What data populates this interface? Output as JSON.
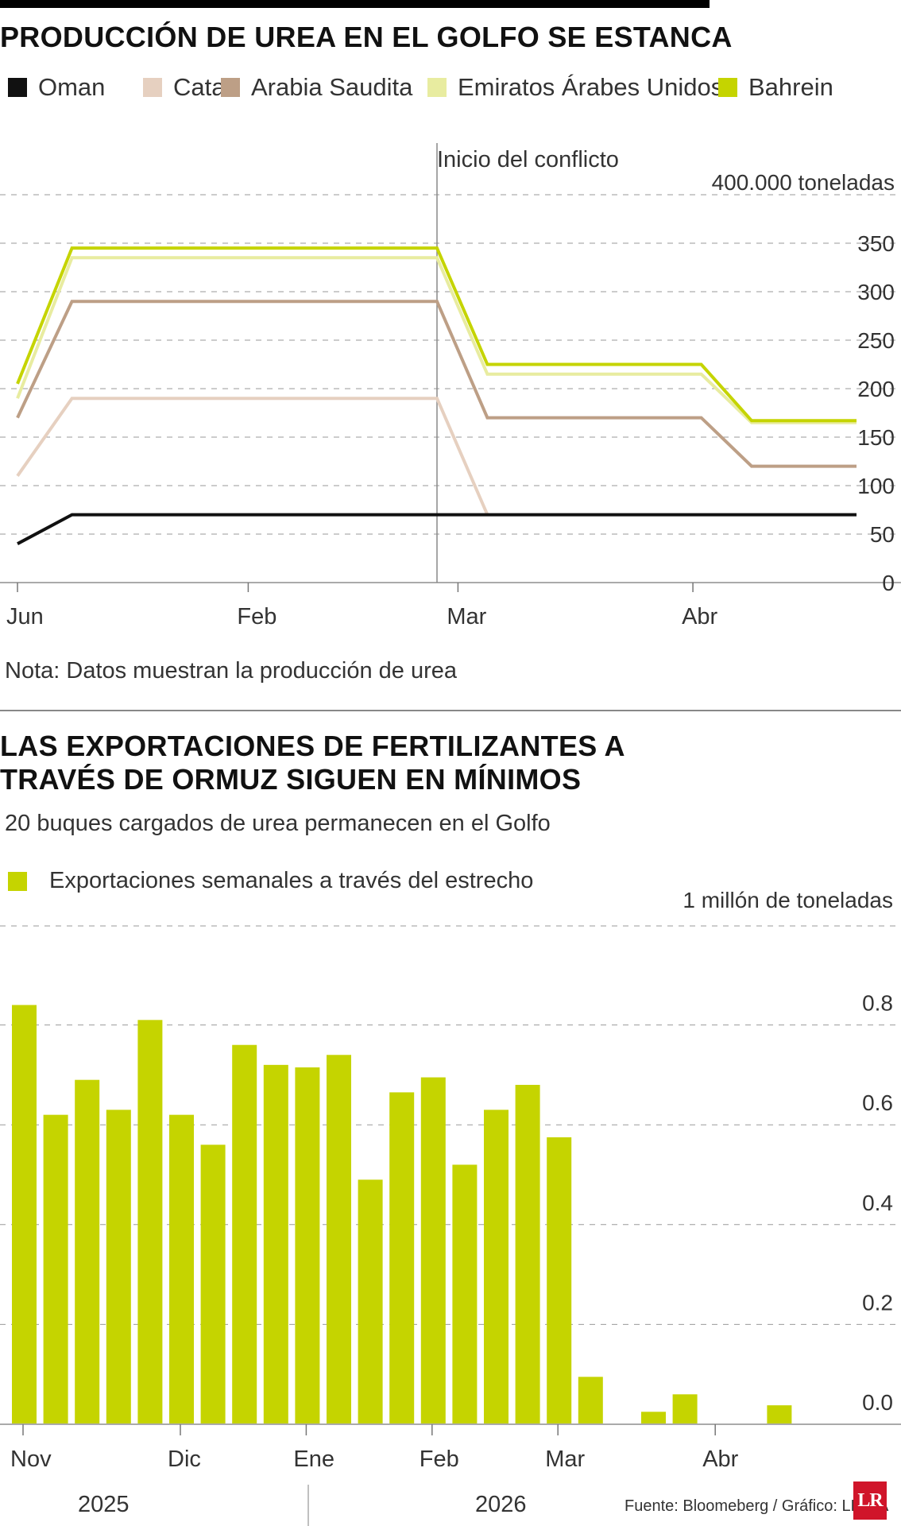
{
  "header": {
    "title": "PRODUCCIÓN DE UREA EN EL GOLFO SE ESTANCA"
  },
  "colors": {
    "oman": "#111111",
    "catar": "#e6d0c0",
    "arabia": "#bd9f86",
    "emiratos": "#e8eca0",
    "bahrein": "#c5d400",
    "bars": "#c5d400"
  },
  "legend1": [
    {
      "label": "Oman",
      "color": "#111111"
    },
    {
      "label": "Catar",
      "color": "#e6d0c0"
    },
    {
      "label": "Arabia Saudita",
      "color": "#bd9f86"
    },
    {
      "label": "Emiratos Árabes Unidos",
      "color": "#e8eca0"
    },
    {
      "label": "Bahrein",
      "color": "#c5d400"
    }
  ],
  "chart1": {
    "annotation": "Inicio del conflicto",
    "unit_label": "400.000 toneladas",
    "note": "Nota: Datos muestran la producción de urea"
  },
  "section2": {
    "title_line1": "LAS EXPORTACIONES DE FERTILIZANTES A",
    "title_line2": "TRAVÉS DE ORMUZ SIGUEN EN MÍNIMOS",
    "subtitle": "20 buques cargados de urea permanecen en el Golfo",
    "legend": "Exportaciones semanales a través del estrecho",
    "unit_label": "1 millón de toneladas",
    "years": [
      "2025",
      "2026"
    ]
  },
  "footer": {
    "source": "Fuente: Bloomeberg / Gráfico: LR-AA",
    "logo": "LR"
  },
  "chart_data": [
    {
      "type": "line",
      "title": "PRODUCCIÓN DE UREA EN EL GOLFO SE ESTANCA",
      "ylabel": "400.000 toneladas",
      "ylim": [
        0,
        400
      ],
      "yticks": [
        0,
        50,
        100,
        150,
        200,
        250,
        300,
        350
      ],
      "xticks": [
        "Jun",
        "Feb",
        "Mar",
        "Abr"
      ],
      "xtick_positions": [
        0,
        0.275,
        0.525,
        0.805
      ],
      "annotation": {
        "text": "Inicio del conflicto",
        "x": 0.5
      },
      "series": [
        {
          "name": "Oman",
          "x": [
            0,
            0.065,
            1
          ],
          "values": [
            40,
            70,
            70
          ]
        },
        {
          "name": "Catar",
          "x": [
            0,
            0.065,
            0.5,
            0.56
          ],
          "values": [
            110,
            190,
            190,
            70
          ]
        },
        {
          "name": "Arabia Saudita",
          "x": [
            0,
            0.065,
            0.5,
            0.56,
            0.815,
            0.875,
            1
          ],
          "values": [
            170,
            290,
            290,
            170,
            170,
            120,
            120
          ]
        },
        {
          "name": "Emiratos Árabes Unidos",
          "x": [
            0,
            0.065,
            0.5,
            0.56,
            0.815,
            0.875,
            1
          ],
          "values": [
            190,
            335,
            335,
            215,
            215,
            165,
            165
          ]
        },
        {
          "name": "Bahrein",
          "x": [
            0,
            0.065,
            0.5,
            0.56,
            0.815,
            0.875,
            1
          ],
          "values": [
            205,
            345,
            345,
            225,
            225,
            167,
            167
          ]
        }
      ]
    },
    {
      "type": "bar",
      "title": "LAS EXPORTACIONES DE FERTILIZANTES A TRAVÉS DE ORMUZ SIGUEN EN MÍNIMOS",
      "ylabel": "1 millón de toneladas",
      "ylim": [
        0,
        0.8
      ],
      "yticks": [
        0.0,
        0.2,
        0.4,
        0.6,
        0.8
      ],
      "series": [
        {
          "name": "Exportaciones semanales a través del estrecho",
          "values": [
            0.84,
            0.62,
            0.69,
            0.63,
            0.81,
            0.62,
            0.56,
            0.76,
            0.72,
            0.715,
            0.74,
            0.49,
            0.665,
            0.695,
            0.52,
            0.63,
            0.68,
            0.575,
            0.095,
            0,
            0.025,
            0.06,
            0,
            0,
            0.038
          ]
        }
      ],
      "xticks": [
        "Nov",
        "Dic",
        "Ene",
        "Feb",
        "Mar",
        "Abr"
      ],
      "xtick_weeks": [
        0,
        5,
        9,
        13,
        17,
        22
      ],
      "years": [
        "2025",
        "2026"
      ]
    }
  ]
}
